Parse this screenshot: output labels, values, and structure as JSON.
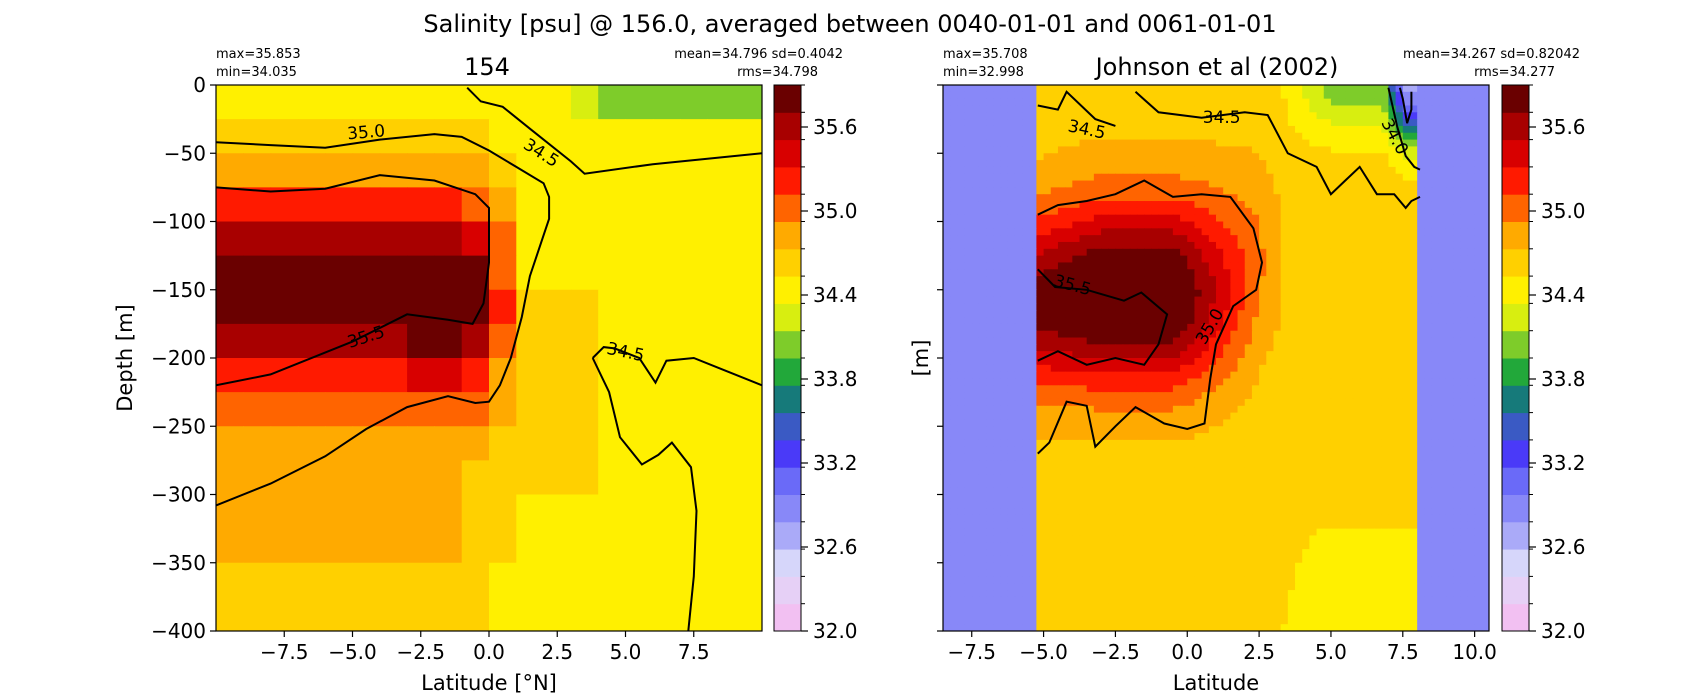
{
  "suptitle": "Salinity [psu] @ 156.0, averaged between 0040-01-01 and 0061-01-01",
  "colormap": {
    "colors": [
      "#f2c0f2",
      "#e6d0f6",
      "#d6d6fa",
      "#aaaaf8",
      "#8888f8",
      "#6a6af8",
      "#4a3af8",
      "#3a5ac4",
      "#167a7a",
      "#22a83a",
      "#7ecc2a",
      "#d8ee10",
      "#fff000",
      "#ffd000",
      "#ffaa00",
      "#ff6400",
      "#ff1a00",
      "#d80000",
      "#a80000",
      "#6a0000"
    ],
    "vmin": 32.0,
    "vmax": 35.9,
    "tick_labels": [
      "32.0",
      "32.6",
      "33.2",
      "33.8",
      "34.4",
      "35.0",
      "35.6"
    ],
    "mask_color": "#8888f8"
  },
  "chart_data": [
    {
      "type": "heatmap",
      "title": "154",
      "stats_left": [
        "max=35.853",
        "min=34.035"
      ],
      "stats_right": [
        "mean=34.796 sd=0.4042",
        "rms=34.798"
      ],
      "xlabel": "Latitude [°N]",
      "ylabel": "Depth [m]",
      "xlim": [
        -10.0,
        10.0
      ],
      "ylim": [
        -400,
        0
      ],
      "x_ticks": [
        -7.5,
        -5.0,
        -2.5,
        0.0,
        2.5,
        5.0,
        7.5
      ],
      "x_tick_labels": [
        "−7.5",
        "−5.0",
        "−2.5",
        "0.0",
        "2.5",
        "5.0",
        "7.5"
      ],
      "y_ticks": [
        0,
        -50,
        -100,
        -150,
        -200,
        -250,
        -300,
        -350,
        -400
      ],
      "y_tick_labels": [
        "0",
        "−50",
        "−100",
        "−150",
        "−200",
        "−250",
        "−300",
        "−350",
        "−400"
      ],
      "show_y_tick_labels": true,
      "field": "model",
      "contours": [
        {
          "level": "35.0",
          "label_x": -4.5,
          "label_y": -35,
          "label_rot": -5,
          "points": [
            [
              -10,
              -42
            ],
            [
              -8,
              -44
            ],
            [
              -6,
              -46
            ],
            [
              -4,
              -40
            ],
            [
              -2,
              -36
            ],
            [
              -1,
              -38
            ],
            [
              0,
              -48
            ],
            [
              1,
              -60
            ],
            [
              2,
              -72
            ],
            [
              2.2,
              -82
            ],
            [
              2.2,
              -98
            ],
            [
              2,
              -110
            ],
            [
              1.5,
              -140
            ],
            [
              1.2,
              -170
            ],
            [
              0.8,
              -200
            ],
            [
              0.4,
              -220
            ],
            [
              0,
              -232
            ],
            [
              -0.5,
              -233
            ],
            [
              -1.5,
              -228
            ],
            [
              -3,
              -236
            ],
            [
              -4.5,
              -252
            ],
            [
              -6,
              -272
            ],
            [
              -8,
              -292
            ],
            [
              -10,
              -308
            ]
          ]
        },
        {
          "level": "35.5",
          "label_x": -4.5,
          "label_y": -185,
          "label_rot": -18,
          "points": [
            [
              -10,
              -75
            ],
            [
              -8,
              -78
            ],
            [
              -6,
              -76
            ],
            [
              -4,
              -66
            ],
            [
              -2,
              -70
            ],
            [
              -0.5,
              -80
            ],
            [
              0,
              -90
            ],
            [
              0,
              -130
            ],
            [
              -0.2,
              -160
            ],
            [
              -0.6,
              -175
            ],
            [
              -1.5,
              -172
            ],
            [
              -3,
              -168
            ],
            [
              -5,
              -188
            ],
            [
              -8,
              -212
            ],
            [
              -10,
              -220
            ]
          ]
        },
        {
          "level": "34.5",
          "label_x": 1.9,
          "label_y": -50,
          "label_rot": 32,
          "points": [
            [
              -0.8,
              -2
            ],
            [
              -0.3,
              -12
            ],
            [
              0.5,
              -16
            ],
            [
              1.5,
              -32
            ],
            [
              3,
              -56
            ],
            [
              3.5,
              -65
            ],
            [
              6,
              -58
            ],
            [
              8,
              -54
            ],
            [
              10,
              -50
            ]
          ]
        },
        {
          "level": "34.5",
          "label_x": 5.0,
          "label_y": -196,
          "label_rot": 12,
          "points": [
            [
              3.8,
              -200
            ],
            [
              4.2,
              -192
            ],
            [
              4.6,
              -193
            ],
            [
              5.5,
              -200
            ],
            [
              6.1,
              -218
            ],
            [
              6.5,
              -202
            ],
            [
              7.5,
              -200
            ],
            [
              8.5,
              -208
            ],
            [
              10,
              -220
            ],
            [
              10,
              -220
            ]
          ]
        },
        {
          "level": "",
          "label_x": 0,
          "label_y": 0,
          "label_rot": 0,
          "points": [
            [
              3.8,
              -200
            ],
            [
              4.4,
              -225
            ],
            [
              4.8,
              -258
            ],
            [
              5.6,
              -278
            ],
            [
              6.2,
              -271
            ],
            [
              6.7,
              -262
            ],
            [
              7.4,
              -280
            ],
            [
              7.6,
              -312
            ],
            [
              7.5,
              -360
            ],
            [
              7.3,
              -400
            ]
          ]
        }
      ]
    },
    {
      "type": "heatmap",
      "title": "Johnson et al (2002)",
      "stats_left": [
        "max=35.708",
        "min=32.998"
      ],
      "stats_right": [
        "mean=34.267 sd=0.82042",
        "rms=34.277"
      ],
      "xlabel": "Latitude",
      "ylabel": "[m]",
      "xlim": [
        -8.5,
        10.5
      ],
      "ylim": [
        -400,
        0
      ],
      "x_ticks": [
        -7.5,
        -5.0,
        -2.5,
        0.0,
        2.5,
        5.0,
        7.5,
        10.0
      ],
      "x_tick_labels": [
        "−7.5",
        "−5.0",
        "−2.5",
        "0.0",
        "2.5",
        "5.0",
        "7.5",
        "10.0"
      ],
      "y_ticks": [
        0,
        -50,
        -100,
        -150,
        -200,
        -250,
        -300,
        -350,
        -400
      ],
      "y_tick_labels": [],
      "show_y_tick_labels": false,
      "field": "obs",
      "mask_ranges": [
        [
          -8.5,
          -5.2
        ],
        [
          8.1,
          10.5
        ]
      ],
      "contours": [
        {
          "level": "34.5",
          "label_x": -3.5,
          "label_y": -33,
          "label_rot": 12,
          "points": [
            [
              -5.2,
              -15
            ],
            [
              -4.5,
              -18
            ],
            [
              -4.2,
              -5
            ],
            [
              -3.2,
              -25
            ],
            [
              -2.5,
              -30
            ]
          ]
        },
        {
          "level": "34.5",
          "label_x": 1.2,
          "label_y": -24,
          "label_rot": 0,
          "points": [
            [
              -1.8,
              -5
            ],
            [
              -1,
              -20
            ],
            [
              0.5,
              -24
            ],
            [
              2,
              -20
            ],
            [
              2.8,
              -22
            ],
            [
              3.5,
              -50
            ],
            [
              4.5,
              -60
            ],
            [
              5,
              -80
            ],
            [
              5.5,
              -70
            ],
            [
              6,
              -60
            ],
            [
              6.6,
              -80
            ],
            [
              7.2,
              -80
            ],
            [
              7.6,
              -90
            ],
            [
              7.8,
              -85
            ],
            [
              8.1,
              -82
            ]
          ]
        },
        {
          "level": "34.0",
          "label_x": 7.2,
          "label_y": -38,
          "label_rot": 62,
          "points": [
            [
              7.0,
              -2
            ],
            [
              7.3,
              -30
            ],
            [
              7.6,
              -52
            ],
            [
              7.9,
              -60
            ],
            [
              8.1,
              -62
            ]
          ]
        },
        {
          "level": "",
          "label_x": 0,
          "label_y": 0,
          "label_rot": 0,
          "points": [
            [
              7.4,
              -2
            ],
            [
              7.5,
              -10
            ],
            [
              7.65,
              -28
            ],
            [
              7.8,
              -18
            ],
            [
              7.8,
              -5
            ]
          ]
        },
        {
          "level": "35.0",
          "label_x": 0.8,
          "label_y": -177,
          "label_rot": -60,
          "points": [
            [
              -5.2,
              -95
            ],
            [
              -4.5,
              -88
            ],
            [
              -3.5,
              -85
            ],
            [
              -2.5,
              -80
            ],
            [
              -1.5,
              -70
            ],
            [
              -0.5,
              -82
            ],
            [
              0.5,
              -80
            ],
            [
              1.5,
              -82
            ],
            [
              2.3,
              -105
            ],
            [
              2.6,
              -130
            ],
            [
              2.4,
              -150
            ],
            [
              1.6,
              -162
            ],
            [
              1.0,
              -190
            ],
            [
              0.8,
              -215
            ],
            [
              0.6,
              -248
            ],
            [
              0,
              -252
            ],
            [
              -0.8,
              -248
            ],
            [
              -1.8,
              -236
            ],
            [
              -2.5,
              -250
            ],
            [
              -3.2,
              -265
            ],
            [
              -3.5,
              -235
            ],
            [
              -4.2,
              -232
            ],
            [
              -4.8,
              -262
            ],
            [
              -5.2,
              -270
            ]
          ]
        },
        {
          "level": "35.5",
          "label_x": -4.0,
          "label_y": -147,
          "label_rot": 15,
          "points": [
            [
              -5.2,
              -135
            ],
            [
              -4.6,
              -148
            ],
            [
              -3.5,
              -150
            ],
            [
              -2.2,
              -158
            ],
            [
              -1.6,
              -152
            ],
            [
              -0.7,
              -168
            ],
            [
              -1.0,
              -190
            ],
            [
              -1.5,
              -205
            ],
            [
              -2.5,
              -200
            ],
            [
              -3.5,
              -205
            ],
            [
              -4.5,
              -195
            ],
            [
              -5.2,
              -202
            ]
          ]
        }
      ]
    }
  ]
}
